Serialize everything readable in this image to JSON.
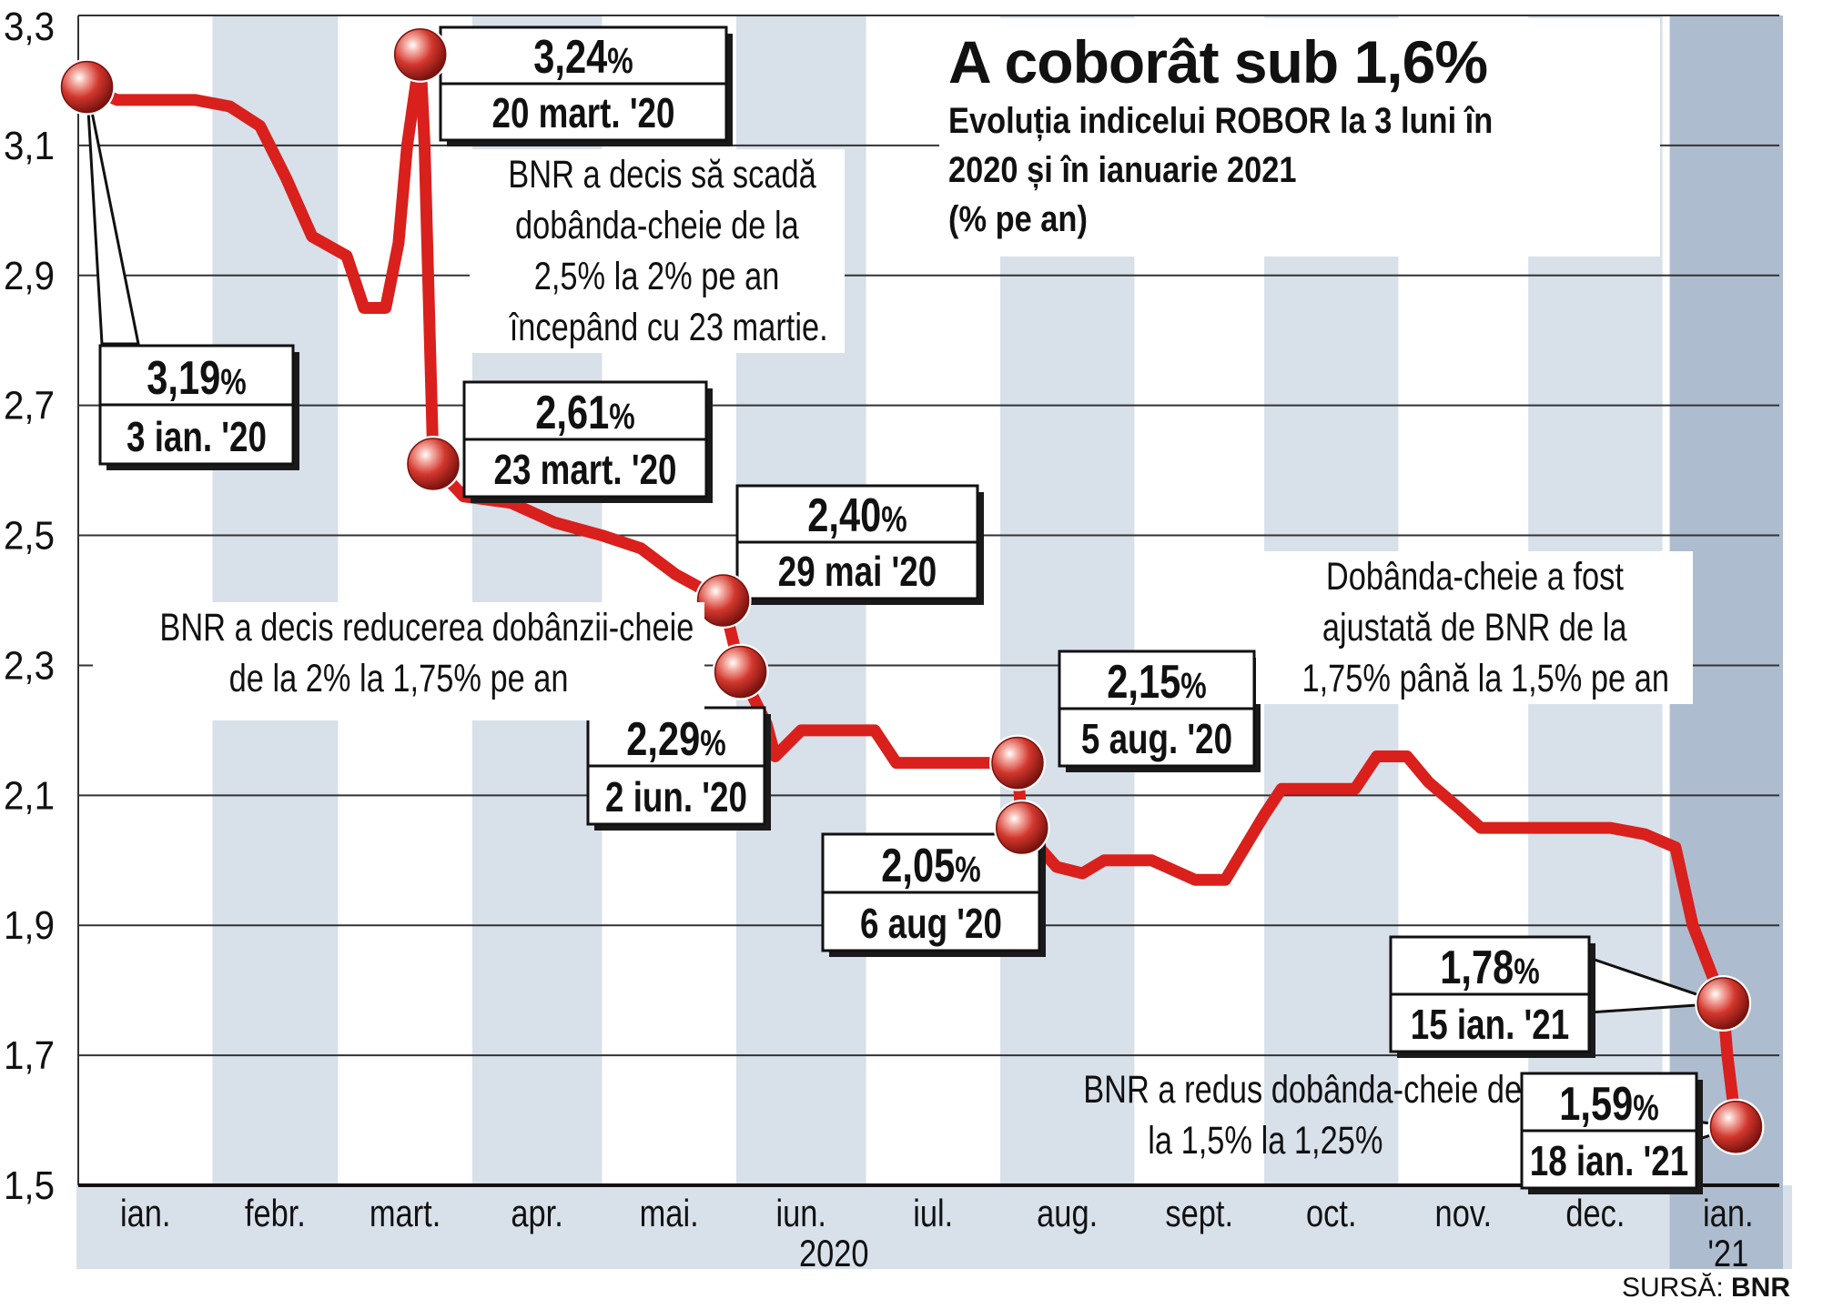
{
  "title": "A coborât sub 1,6%",
  "subtitle_lines": [
    "Evoluția indicelui ROBOR la 3 luni în",
    "2020 și în ianuarie 2021",
    "(% pe an)"
  ],
  "source_label": "SURSĂ:",
  "source_value": "BNR",
  "notes": {
    "march": [
      "BNR a decis să scadă",
      "dobânda-cheie de la",
      "2,5% la 2% pe an",
      "începând cu 23 martie."
    ],
    "may": [
      "BNR a decis reducerea dobânzii-cheie",
      "de la 2% la 1,75% pe an"
    ],
    "august": [
      "Dobânda-cheie a fost",
      "ajustată de BNR de la",
      "1,75% până la 1,5% pe an"
    ],
    "january": [
      "BNR a redus dobânda-cheie de",
      "la 1,5% la 1,25%"
    ]
  },
  "colors": {
    "line": "#d9201c",
    "band": "#d8e0ea",
    "jan21_band": "#aebccf",
    "grid": "#333333",
    "marker": "#c9342c"
  },
  "chart_data": {
    "type": "line",
    "title": "A coborât sub 1,6%",
    "subtitle": "Evoluția indicelui ROBOR la 3 luni în 2020 și în ianuarie 2021 (% pe an)",
    "xlabel": "2020",
    "ylabel": "",
    "ylim": [
      1.5,
      3.3
    ],
    "y_ticks": [
      "3,3",
      "3,1",
      "2,9",
      "2,7",
      "2,5",
      "2,3",
      "2,1",
      "1,9",
      "1,7",
      "1,5"
    ],
    "y_tick_values": [
      3.3,
      3.1,
      2.9,
      2.7,
      2.5,
      2.3,
      2.1,
      1.9,
      1.7,
      1.5
    ],
    "months": [
      "ian.",
      "febr.",
      "mart.",
      "apr.",
      "mai.",
      "iun.",
      "iul.",
      "aug.",
      "sept.",
      "oct.",
      "nov.",
      "dec.",
      "ian."
    ],
    "year_label": "2020",
    "last_year_label": "'21",
    "grid": true,
    "series": [
      {
        "points": [
          [
            "2020-01-03",
            3.19
          ],
          [
            "2020-01-10",
            3.17
          ],
          [
            "2020-01-20",
            3.17
          ],
          [
            "2020-01-28",
            3.17
          ],
          [
            "2020-02-05",
            3.16
          ],
          [
            "2020-02-12",
            3.13
          ],
          [
            "2020-02-18",
            3.05
          ],
          [
            "2020-02-24",
            2.96
          ],
          [
            "2020-03-03",
            2.93
          ],
          [
            "2020-03-07",
            2.85
          ],
          [
            "2020-03-12",
            2.85
          ],
          [
            "2020-03-15",
            2.95
          ],
          [
            "2020-03-17",
            3.1
          ],
          [
            "2020-03-20",
            3.24
          ],
          [
            "2020-03-21",
            3.1
          ],
          [
            "2020-03-23",
            2.61
          ],
          [
            "2020-03-30",
            2.56
          ],
          [
            "2020-04-10",
            2.55
          ],
          [
            "2020-04-20",
            2.52
          ],
          [
            "2020-05-01",
            2.5
          ],
          [
            "2020-05-10",
            2.48
          ],
          [
            "2020-05-18",
            2.44
          ],
          [
            "2020-05-29",
            2.4
          ],
          [
            "2020-06-02",
            2.29
          ],
          [
            "2020-06-08",
            2.21
          ],
          [
            "2020-06-10",
            2.16
          ],
          [
            "2020-06-16",
            2.2
          ],
          [
            "2020-06-25",
            2.2
          ],
          [
            "2020-07-03",
            2.2
          ],
          [
            "2020-07-08",
            2.15
          ],
          [
            "2020-07-20",
            2.15
          ],
          [
            "2020-07-31",
            2.15
          ],
          [
            "2020-08-05",
            2.15
          ],
          [
            "2020-08-06",
            2.05
          ],
          [
            "2020-08-14",
            1.99
          ],
          [
            "2020-08-20",
            1.98
          ],
          [
            "2020-08-25",
            2.0
          ],
          [
            "2020-09-05",
            2.0
          ],
          [
            "2020-09-15",
            1.97
          ],
          [
            "2020-09-22",
            1.97
          ],
          [
            "2020-10-01",
            2.07
          ],
          [
            "2020-10-05",
            2.11
          ],
          [
            "2020-10-15",
            2.11
          ],
          [
            "2020-10-22",
            2.11
          ],
          [
            "2020-10-27",
            2.16
          ],
          [
            "2020-11-03",
            2.16
          ],
          [
            "2020-11-08",
            2.12
          ],
          [
            "2020-11-15",
            2.08
          ],
          [
            "2020-11-20",
            2.05
          ],
          [
            "2020-11-28",
            2.05
          ],
          [
            "2020-12-10",
            2.05
          ],
          [
            "2020-12-20",
            2.05
          ],
          [
            "2020-12-28",
            2.04
          ],
          [
            "2021-01-04",
            2.02
          ],
          [
            "2021-01-08",
            1.9
          ],
          [
            "2021-01-15",
            1.78
          ],
          [
            "2021-01-16",
            1.7
          ],
          [
            "2021-01-18",
            1.59
          ]
        ]
      }
    ],
    "callouts": [
      {
        "value": "3,19",
        "pct": "%",
        "date": "3 ian. '20",
        "x": "2020-01-03",
        "y": 3.19
      },
      {
        "value": "3,24",
        "pct": "%",
        "date": "20 mart. '20",
        "x": "2020-03-20",
        "y": 3.24
      },
      {
        "value": "2,61",
        "pct": "%",
        "date": "23 mart. '20",
        "x": "2020-03-23",
        "y": 2.61
      },
      {
        "value": "2,40",
        "pct": "%",
        "date": "29 mai '20",
        "x": "2020-05-29",
        "y": 2.4
      },
      {
        "value": "2,29",
        "pct": "%",
        "date": "2 iun. '20",
        "x": "2020-06-02",
        "y": 2.29
      },
      {
        "value": "2,15",
        "pct": "%",
        "date": "5 aug. '20",
        "x": "2020-08-05",
        "y": 2.15
      },
      {
        "value": "2,05",
        "pct": "%",
        "date": "6 aug '20",
        "x": "2020-08-06",
        "y": 2.05
      },
      {
        "value": "1,78",
        "pct": "%",
        "date": "15 ian. '21",
        "x": "2021-01-15",
        "y": 1.78
      },
      {
        "value": "1,59",
        "pct": "%",
        "date": "18 ian. '21",
        "x": "2021-01-18",
        "y": 1.59
      }
    ]
  }
}
